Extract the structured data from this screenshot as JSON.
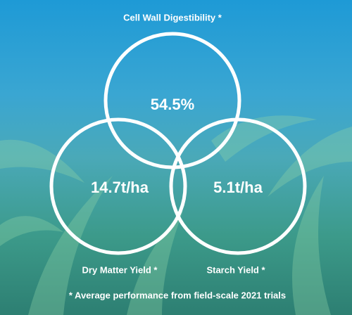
{
  "nodes": [
    {
      "label": "Cell Wall Digestibility *",
      "value": "54.5%"
    },
    {
      "label": "Dry Matter Yield *",
      "value": "14.7t/ha"
    },
    {
      "label": "Starch Yield *",
      "value": "5.1t/ha"
    }
  ],
  "footnote": "* Average performance from field-scale 2021 trials"
}
